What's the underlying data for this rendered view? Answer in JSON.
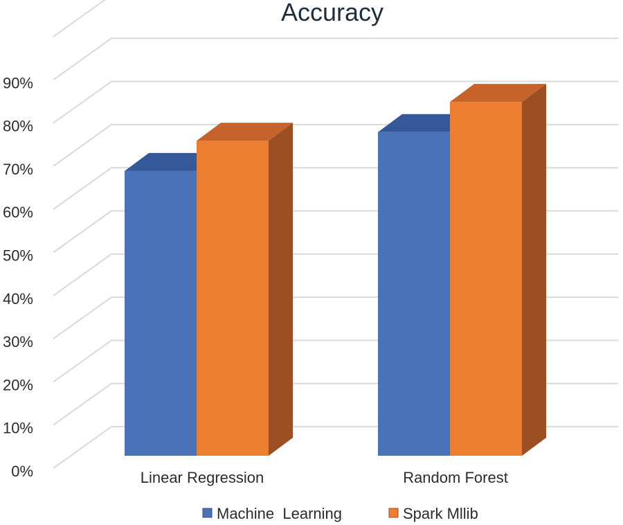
{
  "chart_data": {
    "type": "bar",
    "title": "Accuracy",
    "categories": [
      "Linear Regression",
      "Random Forest"
    ],
    "series": [
      {
        "name": "Machine  Learning",
        "values": [
          66,
          75
        ],
        "color": "#4a72b8",
        "top_color": "#35589a",
        "side_color": "#2f4f8a"
      },
      {
        "name": "Spark Mllib",
        "values": [
          73,
          82
        ],
        "color": "#ed7d31",
        "top_color": "#c5632a",
        "side_color": "#9c4f22"
      }
    ],
    "y_ticks": [
      "0%",
      "10%",
      "20%",
      "30%",
      "40%",
      "50%",
      "60%",
      "70%",
      "80%",
      "90%"
    ],
    "ylim": [
      0,
      100
    ],
    "grid": true,
    "legend_position": "bottom",
    "three_d": true
  }
}
